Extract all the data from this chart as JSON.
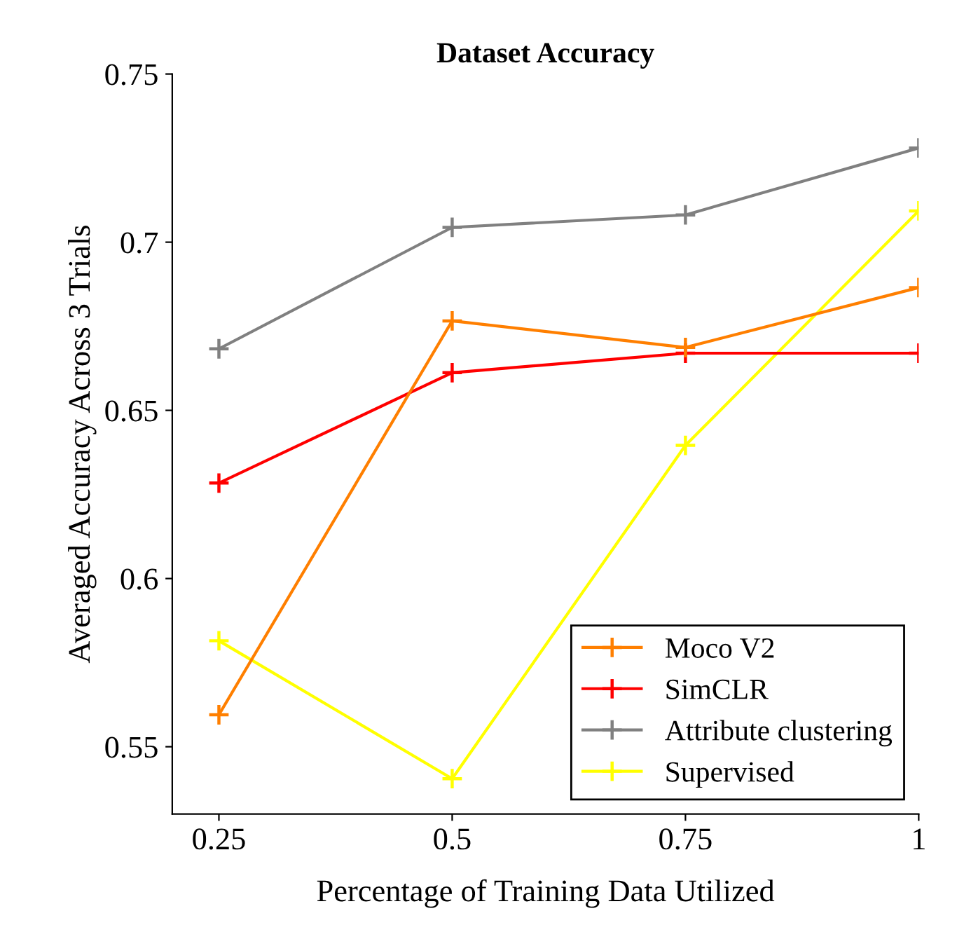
{
  "chart_data": {
    "type": "line",
    "title": "Dataset Accuracy",
    "xlabel": "Percentage of Training Data Utilized",
    "ylabel": "Averaged Accuracy Across 3 Trials",
    "x": [
      0.25,
      0.5,
      0.75,
      1
    ],
    "series": [
      {
        "name": "Moco V2",
        "color": "#ff7f00",
        "values": [
          0.5595,
          0.6766,
          0.6687,
          0.6865
        ]
      },
      {
        "name": "SimCLR",
        "color": "#ff0000",
        "values": [
          0.6284,
          0.6612,
          0.667,
          0.667
        ]
      },
      {
        "name": "Attribute clustering",
        "color": "#808080",
        "values": [
          0.6683,
          0.7044,
          0.7081,
          0.728
        ]
      },
      {
        "name": "Supervised",
        "color": "#ffff00",
        "values": [
          0.5815,
          0.5405,
          0.6396,
          0.7093
        ]
      }
    ],
    "xlim": [
      0.2,
      1
    ],
    "ylim": [
      0.53,
      0.75
    ],
    "xticks": [
      0.25,
      0.5,
      0.75,
      1
    ],
    "yticks": [
      0.55,
      0.6,
      0.65,
      0.7,
      0.75
    ],
    "marker": "cross",
    "line_style": "solid",
    "legend": "bottom right",
    "grid": false
  }
}
